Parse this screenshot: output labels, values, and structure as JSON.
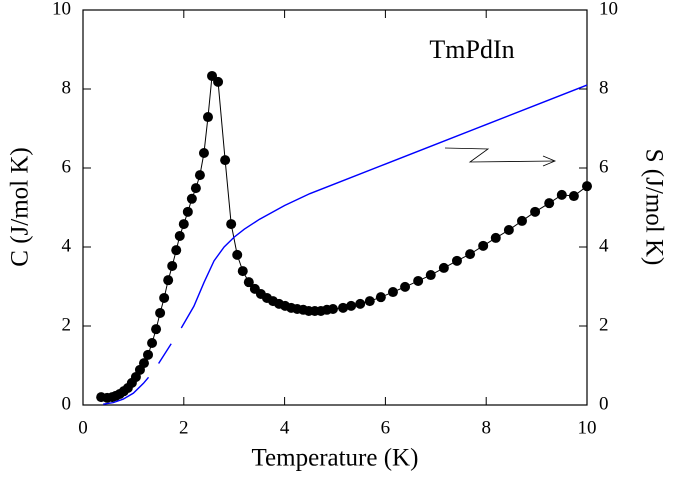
{
  "chart_data": {
    "type": "scatter",
    "annotation": "TmPdIn",
    "x_label": "Temperature (K)",
    "y_label": "C (J/mol K)",
    "y2_label": "S (J/mol K)",
    "xlim": [
      0,
      10
    ],
    "xticks": [
      0,
      2,
      4,
      6,
      8,
      10
    ],
    "ylim": [
      0,
      10
    ],
    "yticks": [
      0,
      2,
      4,
      6,
      8,
      10
    ],
    "y2lim": [
      0,
      10
    ],
    "y2ticks": [
      0,
      2,
      4,
      6,
      8,
      10
    ],
    "series": [
      {
        "name": "C",
        "color": "#000000",
        "marker": "circle",
        "x": [
          0.36,
          0.48,
          0.58,
          0.65,
          0.73,
          0.81,
          0.89,
          0.97,
          1.05,
          1.13,
          1.21,
          1.29,
          1.37,
          1.45,
          1.53,
          1.61,
          1.69,
          1.77,
          1.85,
          1.92,
          2.0,
          2.08,
          2.16,
          2.24,
          2.32,
          2.4,
          2.48,
          2.56,
          2.68,
          2.82,
          2.94,
          3.06,
          3.17,
          3.29,
          3.41,
          3.53,
          3.65,
          3.77,
          3.89,
          4.01,
          4.13,
          4.25,
          4.37,
          4.48,
          4.6,
          4.72,
          4.84,
          4.96,
          5.16,
          5.32,
          5.5,
          5.69,
          5.91,
          6.15,
          6.39,
          6.65,
          6.9,
          7.16,
          7.42,
          7.68,
          7.94,
          8.19,
          8.45,
          8.71,
          8.97,
          9.25,
          9.5,
          9.74,
          10.0
        ],
        "values": [
          0.2,
          0.18,
          0.2,
          0.23,
          0.28,
          0.35,
          0.43,
          0.56,
          0.71,
          0.89,
          1.06,
          1.27,
          1.57,
          1.92,
          2.33,
          2.71,
          3.16,
          3.52,
          3.92,
          4.28,
          4.58,
          4.89,
          5.22,
          5.49,
          5.82,
          6.38,
          7.29,
          8.33,
          8.18,
          6.2,
          4.58,
          3.8,
          3.39,
          3.11,
          2.94,
          2.81,
          2.71,
          2.63,
          2.56,
          2.51,
          2.46,
          2.43,
          2.41,
          2.38,
          2.38,
          2.38,
          2.41,
          2.43,
          2.46,
          2.51,
          2.56,
          2.63,
          2.73,
          2.86,
          2.99,
          3.14,
          3.29,
          3.47,
          3.65,
          3.82,
          4.03,
          4.23,
          4.43,
          4.66,
          4.89,
          5.11,
          5.32,
          5.29,
          5.54
        ]
      },
      {
        "name": "S",
        "color": "#0000ff",
        "marker": "line",
        "axis": "y2",
        "x": [
          0.4,
          0.6,
          0.8,
          1.0,
          1.2,
          1.3,
          1.4,
          1.5,
          1.75,
          1.85,
          1.95,
          2.2,
          2.4,
          2.6,
          2.8,
          3.0,
          3.2,
          3.5,
          4.0,
          4.5,
          5.0,
          6.0,
          7.0,
          8.0,
          9.0,
          10.0
        ],
        "values": [
          0.02,
          0.06,
          0.15,
          0.3,
          0.55,
          0.7,
          null,
          1.05,
          1.55,
          null,
          1.95,
          2.5,
          3.1,
          3.65,
          4.0,
          4.25,
          4.45,
          4.7,
          5.05,
          5.35,
          5.6,
          6.1,
          6.6,
          7.1,
          7.6,
          8.1
        ]
      }
    ]
  }
}
